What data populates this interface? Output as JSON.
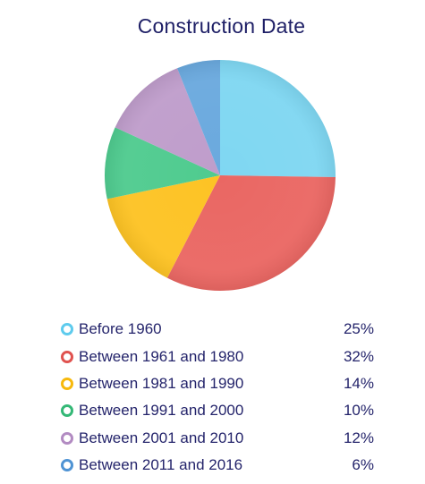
{
  "chart_data": {
    "type": "pie",
    "title": "Construction Date",
    "slices": [
      {
        "label": "Before 1960",
        "value": 25,
        "display": "25%",
        "color": "#7fd7f2"
      },
      {
        "label": "Between 1961 and 1980",
        "value": 32,
        "display": "32%",
        "color": "#ea6763"
      },
      {
        "label": "Between 1981 and 1990",
        "value": 14,
        "display": "14%",
        "color": "#fdc324"
      },
      {
        "label": "Between 1991 and 2000",
        "value": 10,
        "display": "10%",
        "color": "#4fcb8f"
      },
      {
        "label": "Between 2001 and 2010",
        "value": 12,
        "display": "12%",
        "color": "#bf9dcb"
      },
      {
        "label": "Between 2011 and 2016",
        "value": 6,
        "display": "6%",
        "color": "#6aa9de"
      }
    ],
    "legend_position": "bottom"
  },
  "colors": {
    "title_text": "#1e1f66",
    "legend_text": "#24246b",
    "marker_borders": [
      "#5ecbed",
      "#e0524f",
      "#f7b90d",
      "#34b876",
      "#b28bc2",
      "#4f93d4"
    ]
  }
}
